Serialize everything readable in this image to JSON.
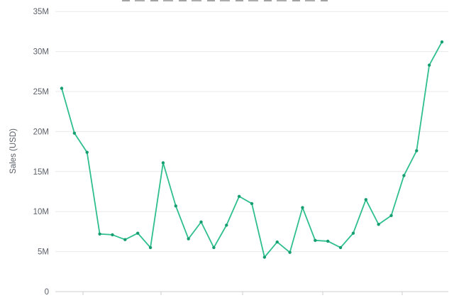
{
  "chart_data": {
    "type": "line",
    "ylabel": "Sales (USD)",
    "unit": "millions USD",
    "ylim": [
      0,
      35
    ],
    "grid": "horizontal",
    "legend": "none",
    "x_tick_labels_visible": false,
    "y_ticks": [
      {
        "label": "0",
        "value": 0
      },
      {
        "label": "5M",
        "value": 5
      },
      {
        "label": "10M",
        "value": 10
      },
      {
        "label": "15M",
        "value": 15
      },
      {
        "label": "20M",
        "value": 20
      },
      {
        "label": "25M",
        "value": 25
      },
      {
        "label": "30M",
        "value": 30
      },
      {
        "label": "35M",
        "value": 35
      }
    ],
    "x": [
      1,
      2,
      3,
      4,
      5,
      6,
      7,
      8,
      9,
      10,
      11,
      12,
      13,
      14,
      15,
      16,
      17,
      18,
      19,
      20,
      21,
      22,
      23,
      24,
      25,
      26,
      27,
      28,
      29,
      30,
      31
    ],
    "series": [
      {
        "name": "Sales",
        "values": [
          25.4,
          19.8,
          17.4,
          7.2,
          7.1,
          6.5,
          7.3,
          5.5,
          16.1,
          10.7,
          6.6,
          8.7,
          5.5,
          8.3,
          11.9,
          11.0,
          4.3,
          6.2,
          4.9,
          10.5,
          6.4,
          6.3,
          5.5,
          7.3,
          11.5,
          8.4,
          9.5,
          14.5,
          17.6,
          28.3,
          31.2
        ]
      }
    ],
    "colors": {
      "line": "#2fbf8c",
      "marker": "#169e72",
      "gridline": "#e9e9e9",
      "axis_line": "#cfcfcf",
      "tick_label": "#5b6069"
    }
  }
}
